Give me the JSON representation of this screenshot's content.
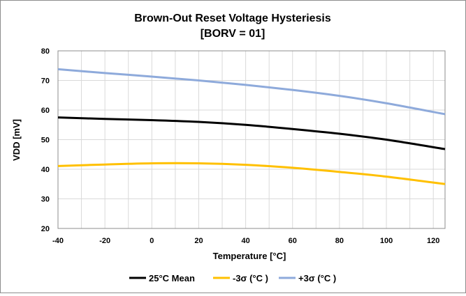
{
  "chart_data": {
    "type": "line",
    "title_line1": "Brown-Out Reset Voltage Hysteriesis",
    "title_line2": "[BORV = 01]",
    "xlabel": "Temperature [°C]",
    "ylabel": "VDD [mV]",
    "xlim": [
      -40,
      125
    ],
    "ylim": [
      20,
      80
    ],
    "xticks": [
      -40,
      -20,
      0,
      20,
      40,
      60,
      80,
      100,
      120
    ],
    "yticks": [
      20,
      30,
      40,
      50,
      60,
      70,
      80
    ],
    "grid": true,
    "legend_position": "bottom",
    "series": [
      {
        "name": "25°C Mean",
        "color": "#000000",
        "x": [
          -40,
          -20,
          0,
          20,
          40,
          60,
          80,
          100,
          125
        ],
        "y": [
          57.5,
          57.0,
          56.6,
          56.0,
          55.0,
          53.6,
          52.0,
          50.0,
          46.8
        ]
      },
      {
        "name": "-3σ (°C )",
        "color": "#ffc000",
        "x": [
          -40,
          -20,
          0,
          20,
          40,
          60,
          80,
          100,
          125
        ],
        "y": [
          41.1,
          41.6,
          42.0,
          42.0,
          41.5,
          40.5,
          39.1,
          37.5,
          35.0
        ]
      },
      {
        "name": "+3σ (°C )",
        "color": "#8eaadb",
        "x": [
          -40,
          -20,
          0,
          20,
          40,
          60,
          80,
          100,
          125
        ],
        "y": [
          73.8,
          72.5,
          71.3,
          70.0,
          68.5,
          66.8,
          64.8,
          62.3,
          58.6
        ]
      }
    ]
  }
}
